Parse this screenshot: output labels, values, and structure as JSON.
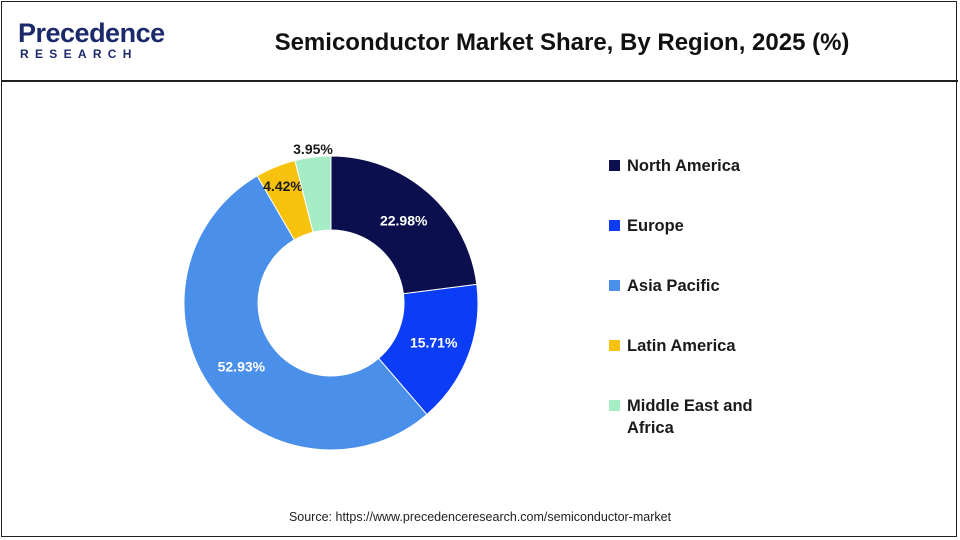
{
  "brand": {
    "logo_top": "Precedence",
    "logo_bottom": "RESEARCH"
  },
  "header": {
    "title": "Semiconductor Market Share, By Region, 2025 (%)"
  },
  "footer": {
    "source": "Source: https://www.precedenceresearch.com/semiconductor-market"
  },
  "chart_data": {
    "type": "pie",
    "variant": "donut",
    "title": "Semiconductor Market Share, By Region, 2025 (%)",
    "categories": [
      "North America",
      "Europe",
      "Asia Pacific",
      "Latin America",
      "Middle East and Africa"
    ],
    "values": [
      22.98,
      15.71,
      52.93,
      4.42,
      3.95
    ],
    "labels": [
      "22.98%",
      "15.71%",
      "52.93%",
      "4.42%",
      "3.95%"
    ],
    "colors": [
      "#0b0f4d",
      "#0a3df5",
      "#4a8fea",
      "#f7c20b",
      "#a6ecc4"
    ],
    "legend_position": "right"
  }
}
